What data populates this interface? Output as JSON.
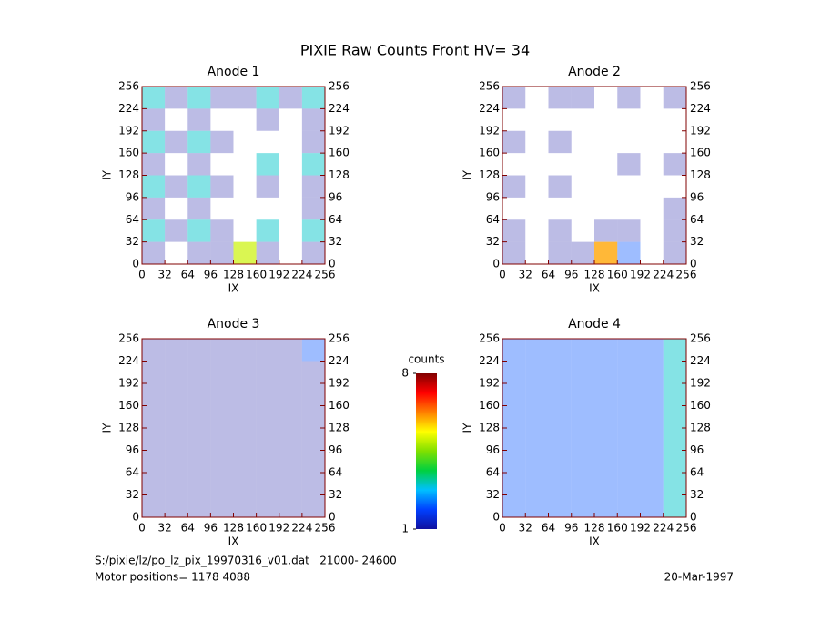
{
  "title": "PIXIE Raw Counts Front HV= 34",
  "chart_data": [
    {
      "type": "heatmap",
      "title": "Anode 1",
      "xlabel": "IX",
      "ylabel": "IY",
      "xlim": [
        0,
        256
      ],
      "ylim": [
        0,
        256
      ],
      "xticks": [
        0,
        32,
        64,
        96,
        128,
        160,
        192,
        224,
        256
      ],
      "yticks": [
        0,
        32,
        64,
        96,
        128,
        160,
        192,
        224,
        256
      ],
      "values": [
        [
          3,
          1,
          3,
          1,
          1,
          3,
          1,
          3
        ],
        [
          1,
          0,
          1,
          0,
          0,
          1,
          0,
          1
        ],
        [
          3,
          1,
          3,
          1,
          0,
          0,
          0,
          1
        ],
        [
          1,
          0,
          1,
          0,
          0,
          3,
          0,
          3
        ],
        [
          3,
          1,
          3,
          1,
          0,
          1,
          0,
          1
        ],
        [
          1,
          0,
          1,
          0,
          0,
          0,
          0,
          1
        ],
        [
          3,
          1,
          3,
          1,
          0,
          3,
          0,
          3
        ],
        [
          1,
          0,
          1,
          1,
          5,
          1,
          0,
          1
        ]
      ]
    },
    {
      "type": "heatmap",
      "title": "Anode 2",
      "xlabel": "IX",
      "ylabel": "IY",
      "xlim": [
        0,
        256
      ],
      "ylim": [
        0,
        256
      ],
      "xticks": [
        0,
        32,
        64,
        96,
        128,
        160,
        192,
        224,
        256
      ],
      "yticks": [
        0,
        32,
        64,
        96,
        128,
        160,
        192,
        224,
        256
      ],
      "values": [
        [
          1,
          0,
          1,
          1,
          0,
          1,
          0,
          1
        ],
        [
          0,
          0,
          0,
          0,
          0,
          0,
          0,
          0
        ],
        [
          1,
          0,
          1,
          0,
          0,
          0,
          0,
          0
        ],
        [
          0,
          0,
          0,
          0,
          0,
          1,
          0,
          1
        ],
        [
          1,
          0,
          1,
          0,
          0,
          0,
          0,
          0
        ],
        [
          0,
          0,
          0,
          0,
          0,
          0,
          0,
          1
        ],
        [
          1,
          0,
          1,
          0,
          1,
          1,
          0,
          1
        ],
        [
          1,
          0,
          1,
          1,
          6,
          2,
          0,
          1
        ]
      ]
    },
    {
      "type": "heatmap",
      "title": "Anode 3",
      "xlabel": "IX",
      "ylabel": "IY",
      "xlim": [
        0,
        256
      ],
      "ylim": [
        0,
        256
      ],
      "xticks": [
        0,
        32,
        64,
        96,
        128,
        160,
        192,
        224,
        256
      ],
      "yticks": [
        0,
        32,
        64,
        96,
        128,
        160,
        192,
        224,
        256
      ],
      "values": [
        [
          1,
          1,
          1,
          1,
          1,
          1,
          1,
          2
        ],
        [
          1,
          1,
          1,
          1,
          1,
          1,
          1,
          1
        ],
        [
          1,
          1,
          1,
          1,
          1,
          1,
          1,
          1
        ],
        [
          1,
          1,
          1,
          1,
          1,
          1,
          1,
          1
        ],
        [
          1,
          1,
          1,
          1,
          1,
          1,
          1,
          1
        ],
        [
          1,
          1,
          1,
          1,
          1,
          1,
          1,
          1
        ],
        [
          1,
          1,
          1,
          1,
          1,
          1,
          1,
          1
        ],
        [
          1,
          1,
          1,
          1,
          1,
          1,
          1,
          1
        ]
      ]
    },
    {
      "type": "heatmap",
      "title": "Anode 4",
      "xlabel": "IX",
      "ylabel": "IY",
      "xlim": [
        0,
        256
      ],
      "ylim": [
        0,
        256
      ],
      "xticks": [
        0,
        32,
        64,
        96,
        128,
        160,
        192,
        224,
        256
      ],
      "yticks": [
        0,
        32,
        64,
        96,
        128,
        160,
        192,
        224,
        256
      ],
      "values": [
        [
          2,
          2,
          2,
          2,
          2,
          2,
          2,
          3
        ],
        [
          2,
          2,
          2,
          2,
          2,
          2,
          2,
          3
        ],
        [
          2,
          2,
          2,
          2,
          2,
          2,
          2,
          3
        ],
        [
          2,
          2,
          2,
          2,
          2,
          2,
          2,
          3
        ],
        [
          2,
          2,
          2,
          2,
          2,
          2,
          2,
          3
        ],
        [
          2,
          2,
          2,
          2,
          2,
          2,
          2,
          3
        ],
        [
          2,
          2,
          2,
          2,
          2,
          2,
          2,
          3
        ],
        [
          2,
          2,
          2,
          2,
          2,
          2,
          2,
          3
        ]
      ]
    }
  ],
  "colorbar": {
    "label": "counts",
    "ylim": [
      1,
      8
    ],
    "yticks": [
      1,
      8
    ],
    "colors": [
      "#1010a0",
      "#0040ff",
      "#00c0ff",
      "#00d040",
      "#80e000",
      "#ffff00",
      "#ff8000",
      "#ff0000",
      "#800000"
    ]
  },
  "footer": {
    "file": "S:/pixie/lz/po_lz_pix_19970316_v01.dat   21000- 24600",
    "motor": "Motor positions= 1178 4088",
    "date": "20-Mar-1997"
  }
}
